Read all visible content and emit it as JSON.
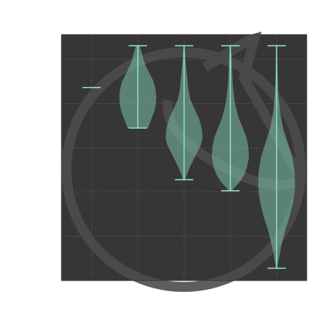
{
  "chart_data": {
    "type": "violin",
    "title": "",
    "xlabel": "",
    "ylabel": "",
    "xlim": [
      0.35,
      5.65
    ],
    "ylim": [
      0,
      1
    ],
    "grid": true,
    "x_tick_positions": [
      1,
      2,
      3,
      4,
      5
    ],
    "y_gridlines": [
      0.18,
      0.36,
      0.54,
      0.72,
      0.9
    ],
    "series": [
      {
        "x": 1,
        "min": 0.785,
        "max": 0.785,
        "profile": []
      },
      {
        "x": 2,
        "min": 0.62,
        "max": 0.955,
        "profile": [
          [
            0.955,
            0.04
          ],
          [
            0.93,
            0.08
          ],
          [
            0.9,
            0.12
          ],
          [
            0.87,
            0.18
          ],
          [
            0.84,
            0.26
          ],
          [
            0.81,
            0.34
          ],
          [
            0.78,
            0.38
          ],
          [
            0.75,
            0.4
          ],
          [
            0.72,
            0.39
          ],
          [
            0.69,
            0.36
          ],
          [
            0.66,
            0.3
          ],
          [
            0.64,
            0.26
          ],
          [
            0.62,
            0.22
          ]
        ]
      },
      {
        "x": 3,
        "min": 0.41,
        "max": 0.955,
        "profile": [
          [
            0.955,
            0.01
          ],
          [
            0.9,
            0.03
          ],
          [
            0.86,
            0.05
          ],
          [
            0.82,
            0.07
          ],
          [
            0.78,
            0.09
          ],
          [
            0.74,
            0.13
          ],
          [
            0.7,
            0.22
          ],
          [
            0.66,
            0.32
          ],
          [
            0.62,
            0.38
          ],
          [
            0.58,
            0.4
          ],
          [
            0.55,
            0.36
          ],
          [
            0.52,
            0.28
          ],
          [
            0.49,
            0.2
          ],
          [
            0.46,
            0.12
          ],
          [
            0.43,
            0.06
          ],
          [
            0.41,
            0.02
          ]
        ]
      },
      {
        "x": 4,
        "min": 0.365,
        "max": 0.955,
        "profile": [
          [
            0.955,
            0.01
          ],
          [
            0.9,
            0.03
          ],
          [
            0.84,
            0.04
          ],
          [
            0.78,
            0.06
          ],
          [
            0.72,
            0.1
          ],
          [
            0.66,
            0.18
          ],
          [
            0.62,
            0.27
          ],
          [
            0.58,
            0.35
          ],
          [
            0.54,
            0.39
          ],
          [
            0.5,
            0.4
          ],
          [
            0.46,
            0.36
          ],
          [
            0.43,
            0.3
          ],
          [
            0.4,
            0.2
          ],
          [
            0.38,
            0.1
          ],
          [
            0.365,
            0.03
          ]
        ]
      },
      {
        "x": 5,
        "min": 0.05,
        "max": 0.955,
        "profile": [
          [
            0.955,
            0.01
          ],
          [
            0.85,
            0.02
          ],
          [
            0.75,
            0.04
          ],
          [
            0.68,
            0.08
          ],
          [
            0.62,
            0.14
          ],
          [
            0.56,
            0.24
          ],
          [
            0.5,
            0.34
          ],
          [
            0.44,
            0.39
          ],
          [
            0.38,
            0.4
          ],
          [
            0.32,
            0.36
          ],
          [
            0.26,
            0.28
          ],
          [
            0.2,
            0.18
          ],
          [
            0.14,
            0.1
          ],
          [
            0.09,
            0.05
          ],
          [
            0.05,
            0.01
          ]
        ]
      }
    ],
    "colors": {
      "background": "#363636",
      "violin_fill": "#7bbfaa",
      "lines": "#8fe3cc",
      "grid": "#5c5c5c",
      "watermark": "#4c4c4c"
    }
  }
}
